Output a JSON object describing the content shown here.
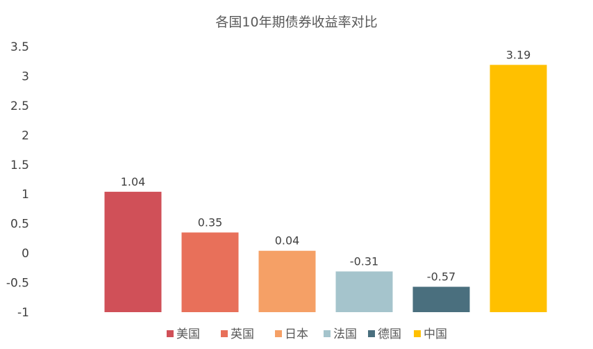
{
  "chart_data": {
    "type": "bar",
    "title": "各国10年期债券收益率对比",
    "categories": [
      "美国",
      "英国",
      "日本",
      "法国",
      "德国",
      "中国"
    ],
    "values": [
      1.04,
      0.35,
      0.04,
      -0.31,
      -0.57,
      3.19
    ],
    "value_labels": [
      "1.04",
      "0.35",
      "0.04",
      "-0.31",
      "-0.57",
      "3.19"
    ],
    "colors": [
      "#D05058",
      "#E8705A",
      "#F5A066",
      "#A5C4CC",
      "#4A6F7E",
      "#FFC000"
    ],
    "ylim": [
      -1,
      3.5
    ],
    "yticks": [
      3.5,
      3,
      2.5,
      2,
      1.5,
      1,
      0.5,
      0,
      -0.5,
      -1
    ],
    "ytick_labels": [
      "3.5",
      "3",
      "2.5",
      "2",
      "1.5",
      "1",
      "0.5",
      "0",
      "-0.5",
      "-1"
    ],
    "grid": false,
    "legend": "bottom",
    "xlabel": "",
    "ylabel": ""
  }
}
